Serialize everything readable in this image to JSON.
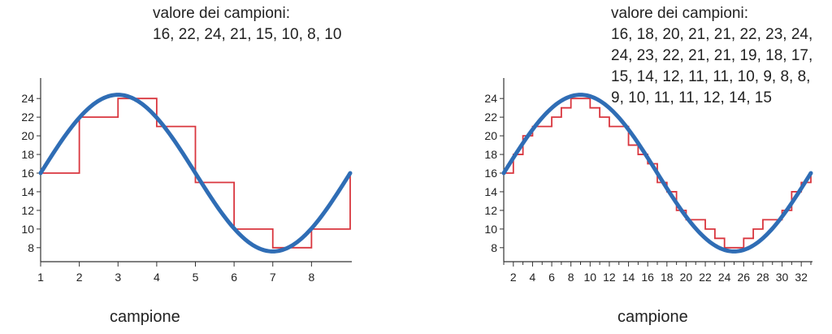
{
  "chart_data": [
    {
      "type": "line",
      "annotation_title": "valore dei campioni:",
      "annotation_values": "16, 22, 24, 21, 15, 10, 8, 10",
      "xlabel": "campione",
      "ylabel": "",
      "x_ticks": [
        1,
        2,
        3,
        4,
        5,
        6,
        7,
        8
      ],
      "y_ticks": [
        8,
        10,
        12,
        14,
        16,
        18,
        20,
        22,
        24
      ],
      "xlim": [
        1,
        9
      ],
      "ylim": [
        6.5,
        25.5
      ],
      "series": [
        {
          "kind": "sine",
          "color": "#2f6db5",
          "offset": 16,
          "amplitude": 8.4,
          "period": 8,
          "phase_x": 1
        },
        {
          "kind": "step",
          "color": "#d9363e",
          "samples": [
            16,
            22,
            24,
            21,
            15,
            10,
            8,
            10
          ]
        }
      ]
    },
    {
      "type": "line",
      "annotation_title": "valore dei campioni:",
      "annotation_values_lines": [
        "16, 18, 20, 21, 21, 22, 23, 24,",
        "24, 23, 22, 21, 21, 19, 18, 17,",
        "15, 14, 12, 11, 11, 10, 9, 8, 8,",
        "9, 10, 11, 11, 12, 14, 15"
      ],
      "xlabel": "campione",
      "ylabel": "",
      "x_ticks": [
        2,
        4,
        6,
        8,
        10,
        12,
        14,
        16,
        18,
        20,
        22,
        24,
        26,
        28,
        30,
        32
      ],
      "y_ticks": [
        8,
        10,
        12,
        14,
        16,
        18,
        20,
        22,
        24
      ],
      "xlim": [
        1,
        33
      ],
      "ylim": [
        6.5,
        25.5
      ],
      "series": [
        {
          "kind": "sine",
          "color": "#2f6db5",
          "offset": 16,
          "amplitude": 8.4,
          "period": 32,
          "phase_x": 1
        },
        {
          "kind": "step",
          "color": "#d9363e",
          "samples": [
            16,
            18,
            20,
            21,
            21,
            22,
            23,
            24,
            24,
            23,
            22,
            21,
            21,
            19,
            18,
            17,
            15,
            14,
            12,
            11,
            11,
            10,
            9,
            8,
            8,
            9,
            10,
            11,
            11,
            12,
            14,
            15
          ]
        }
      ]
    }
  ]
}
